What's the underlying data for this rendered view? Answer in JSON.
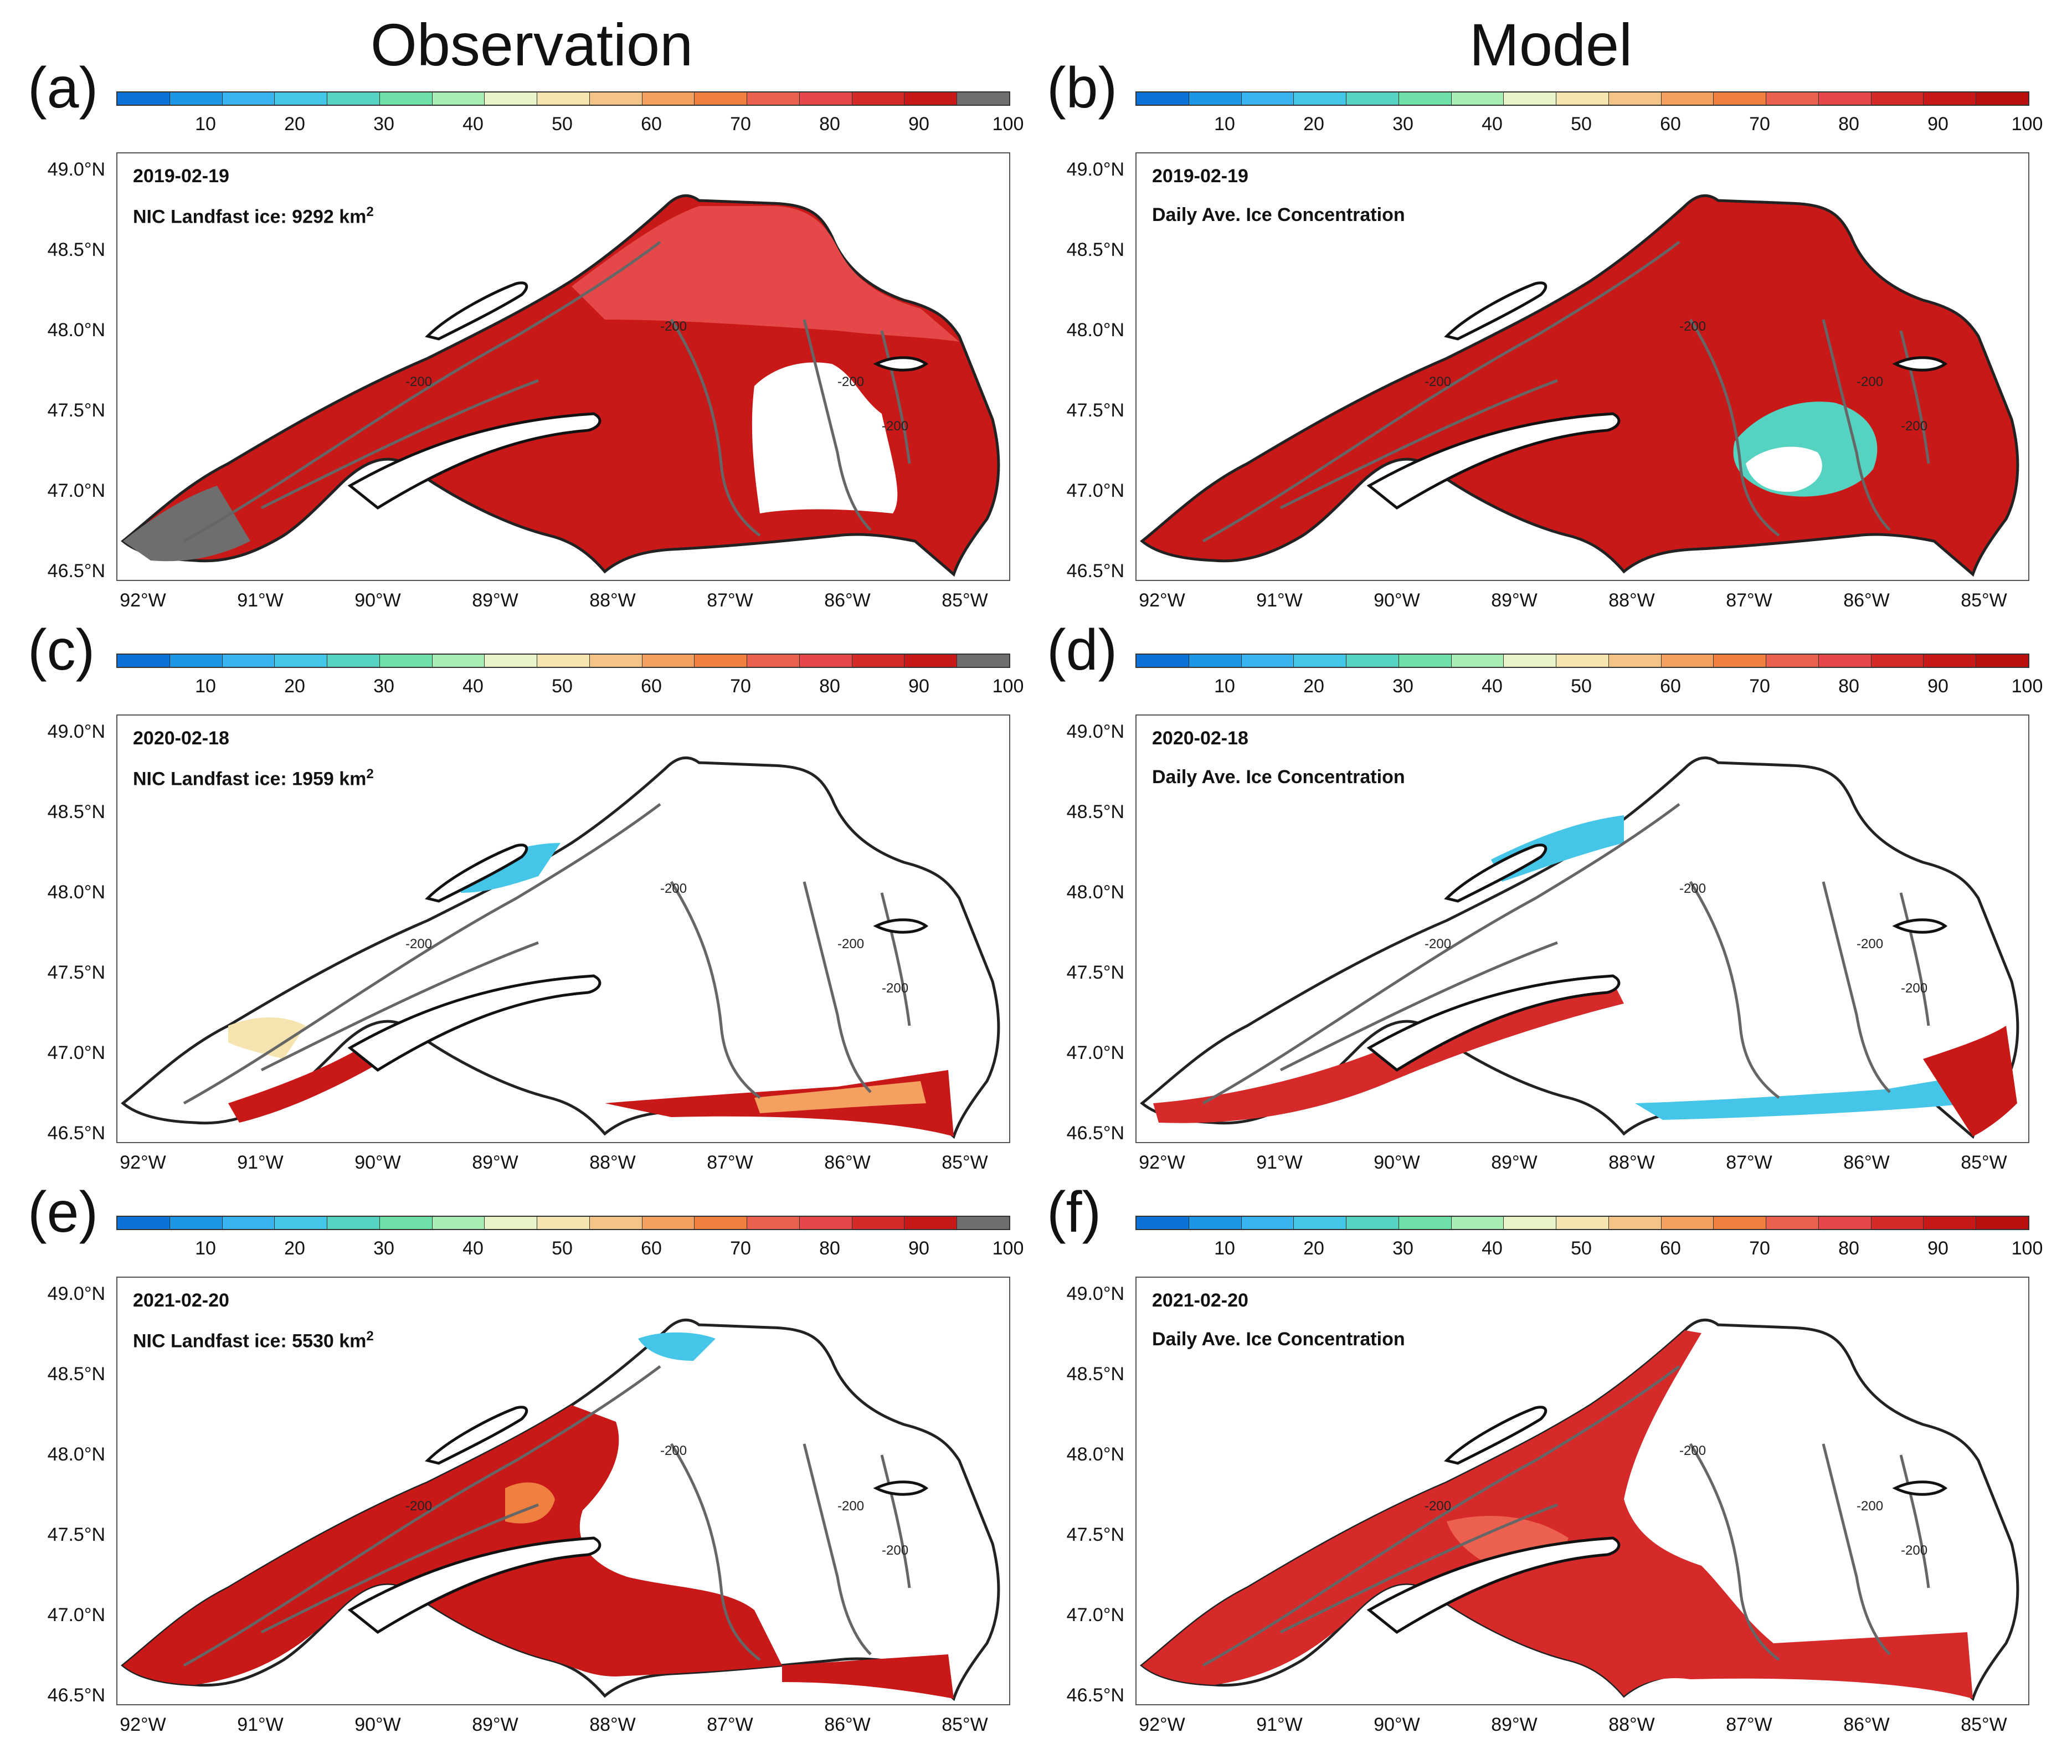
{
  "columns": {
    "left": "Observation",
    "right": "Model"
  },
  "colorbar": {
    "ticks": [
      "10",
      "20",
      "30",
      "40",
      "50",
      "60",
      "70",
      "80",
      "90",
      "100"
    ],
    "obs_colors": [
      "#0b73d8",
      "#1e96e6",
      "#3ab4f0",
      "#45c6e8",
      "#55d2c0",
      "#6fe0a8",
      "#a8eeb4",
      "#e8f4c8",
      "#f6e4b0",
      "#f4c488",
      "#f4a060",
      "#ef8040",
      "#ec6050",
      "#e54848",
      "#d62a2a",
      "#c81818",
      "#6e6e6e"
    ],
    "model_colors": [
      "#0b73d8",
      "#1e96e6",
      "#3ab4f0",
      "#45c6e8",
      "#55d2c0",
      "#6fe0a8",
      "#a8eeb4",
      "#e8f4c8",
      "#f6e4b0",
      "#f4c488",
      "#f4a060",
      "#ef8040",
      "#ec6050",
      "#e54848",
      "#d62a2a",
      "#c81818",
      "#b80f0f"
    ]
  },
  "axes": {
    "lat": [
      "49.0°N",
      "48.5°N",
      "48.0°N",
      "47.5°N",
      "47.0°N",
      "46.5°N"
    ],
    "lon": [
      "92°W",
      "91°W",
      "90°W",
      "89°W",
      "88°W",
      "87°W",
      "86°W",
      "85°W"
    ],
    "contour_label": "-200"
  },
  "panels": [
    {
      "letter": "(a)",
      "date": "2019-02-19",
      "note_prefix": "NIC Landfast ice: 9292 km",
      "note_sup": "2"
    },
    {
      "letter": "(b)",
      "date": "2019-02-19",
      "note": "Daily Ave. Ice Concentration"
    },
    {
      "letter": "(c)",
      "date": "2020-02-18",
      "note_prefix": "NIC Landfast ice: 1959 km",
      "note_sup": "2"
    },
    {
      "letter": "(d)",
      "date": "2020-02-18",
      "note": "Daily Ave. Ice Concentration"
    },
    {
      "letter": "(e)",
      "date": "2021-02-20",
      "note_prefix": "NIC Landfast ice: 5530 km",
      "note_sup": "2"
    },
    {
      "letter": "(f)",
      "date": "2021-02-20",
      "note": "Daily Ave. Ice Concentration"
    }
  ]
}
